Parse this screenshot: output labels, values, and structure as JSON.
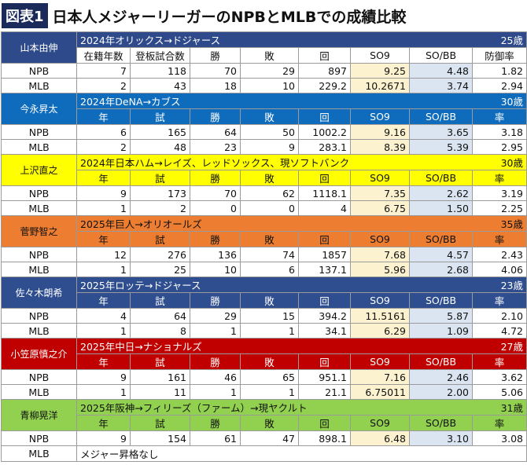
{
  "header": {
    "badge": "図表1",
    "title": "日本人メジャーリーガーのNPBとMLBでの成績比較"
  },
  "players": [
    {
      "name": "山本由伸",
      "transfer": "2024年オリックス→ドジャース",
      "age": "25歳",
      "columns": [
        "在籍年数",
        "登板試合数",
        "勝",
        "敗",
        "回",
        "SO9",
        "SO/BB",
        "防御率"
      ],
      "rows": [
        {
          "league": "NPB",
          "cells": [
            "7",
            "118",
            "70",
            "29",
            "897",
            "9.25",
            "4.48",
            "1.82"
          ]
        },
        {
          "league": "MLB",
          "cells": [
            "2",
            "43",
            "18",
            "10",
            "229.2",
            "10.2671",
            "3.74",
            "2.94"
          ]
        }
      ]
    },
    {
      "name": "今永昇太",
      "transfer": "2024年DeNA→カブス",
      "age": "30歳",
      "columns": [
        "年",
        "試",
        "勝",
        "敗",
        "回",
        "SO9",
        "SO/BB",
        "率"
      ],
      "rows": [
        {
          "league": "NPB",
          "cells": [
            "6",
            "165",
            "64",
            "50",
            "1002.2",
            "9.16",
            "3.65",
            "3.18"
          ]
        },
        {
          "league": "MLB",
          "cells": [
            "2",
            "48",
            "23",
            "9",
            "283.1",
            "8.39",
            "5.39",
            "2.95"
          ]
        }
      ]
    },
    {
      "name": "上沢直之",
      "transfer": "2024年日本ハム→レイズ、レッドソックス、現ソフトバンク",
      "age": "30歳",
      "columns": [
        "年",
        "試",
        "勝",
        "敗",
        "回",
        "SO9",
        "SO/BB",
        "率"
      ],
      "rows": [
        {
          "league": "NPB",
          "cells": [
            "9",
            "173",
            "70",
            "62",
            "1118.1",
            "7.35",
            "2.62",
            "3.19"
          ]
        },
        {
          "league": "MLB",
          "cells": [
            "1",
            "2",
            "0",
            "0",
            "4",
            "6.75",
            "1.50",
            "2.25"
          ]
        }
      ]
    },
    {
      "name": "菅野智之",
      "transfer": "2025年巨人→オリオールズ",
      "age": "35歳",
      "columns": [
        "年",
        "試",
        "勝",
        "敗",
        "回",
        "SO9",
        "SO/BB",
        "率"
      ],
      "rows": [
        {
          "league": "NPB",
          "cells": [
            "12",
            "276",
            "136",
            "74",
            "1857",
            "7.68",
            "4.57",
            "2.43"
          ]
        },
        {
          "league": "MLB",
          "cells": [
            "1",
            "25",
            "10",
            "6",
            "137.1",
            "5.96",
            "2.68",
            "4.06"
          ]
        }
      ]
    },
    {
      "name": "佐々木朗希",
      "transfer": "2025年ロッテ→ドジャース",
      "age": "23歳",
      "columns": [
        "年",
        "試",
        "勝",
        "敗",
        "回",
        "SO9",
        "SO/BB",
        "率"
      ],
      "rows": [
        {
          "league": "NPB",
          "cells": [
            "4",
            "64",
            "29",
            "15",
            "394.2",
            "11.5161",
            "5.87",
            "2.10"
          ]
        },
        {
          "league": "MLB",
          "cells": [
            "1",
            "8",
            "1",
            "1",
            "34.1",
            "6.29",
            "1.09",
            "4.72"
          ]
        }
      ]
    },
    {
      "name": "小笠原慎之介",
      "transfer": "2025年中日→ナショナルズ",
      "age": "27歳",
      "columns": [
        "年",
        "試",
        "勝",
        "敗",
        "回",
        "SO9",
        "SO/BB",
        "率"
      ],
      "rows": [
        {
          "league": "NPB",
          "cells": [
            "9",
            "161",
            "46",
            "65",
            "951.1",
            "7.16",
            "2.46",
            "3.62"
          ]
        },
        {
          "league": "MLB",
          "cells": [
            "1",
            "11",
            "1",
            "1",
            "21.1",
            "6.75011",
            "2.00",
            "5.06"
          ]
        }
      ]
    },
    {
      "name": "青柳晃洋",
      "transfer": "2025年阪神→フィリーズ（ファーム）→現ヤクルト",
      "age": "31歳",
      "columns": [
        "年",
        "試",
        "勝",
        "敗",
        "回",
        "SO9",
        "SO/BB",
        "率"
      ],
      "rows": [
        {
          "league": "NPB",
          "cells": [
            "9",
            "154",
            "61",
            "47",
            "898.1",
            "6.48",
            "3.10",
            "3.08"
          ]
        },
        {
          "league": "MLB",
          "note": "メジャー昇格なし"
        }
      ]
    }
  ]
}
